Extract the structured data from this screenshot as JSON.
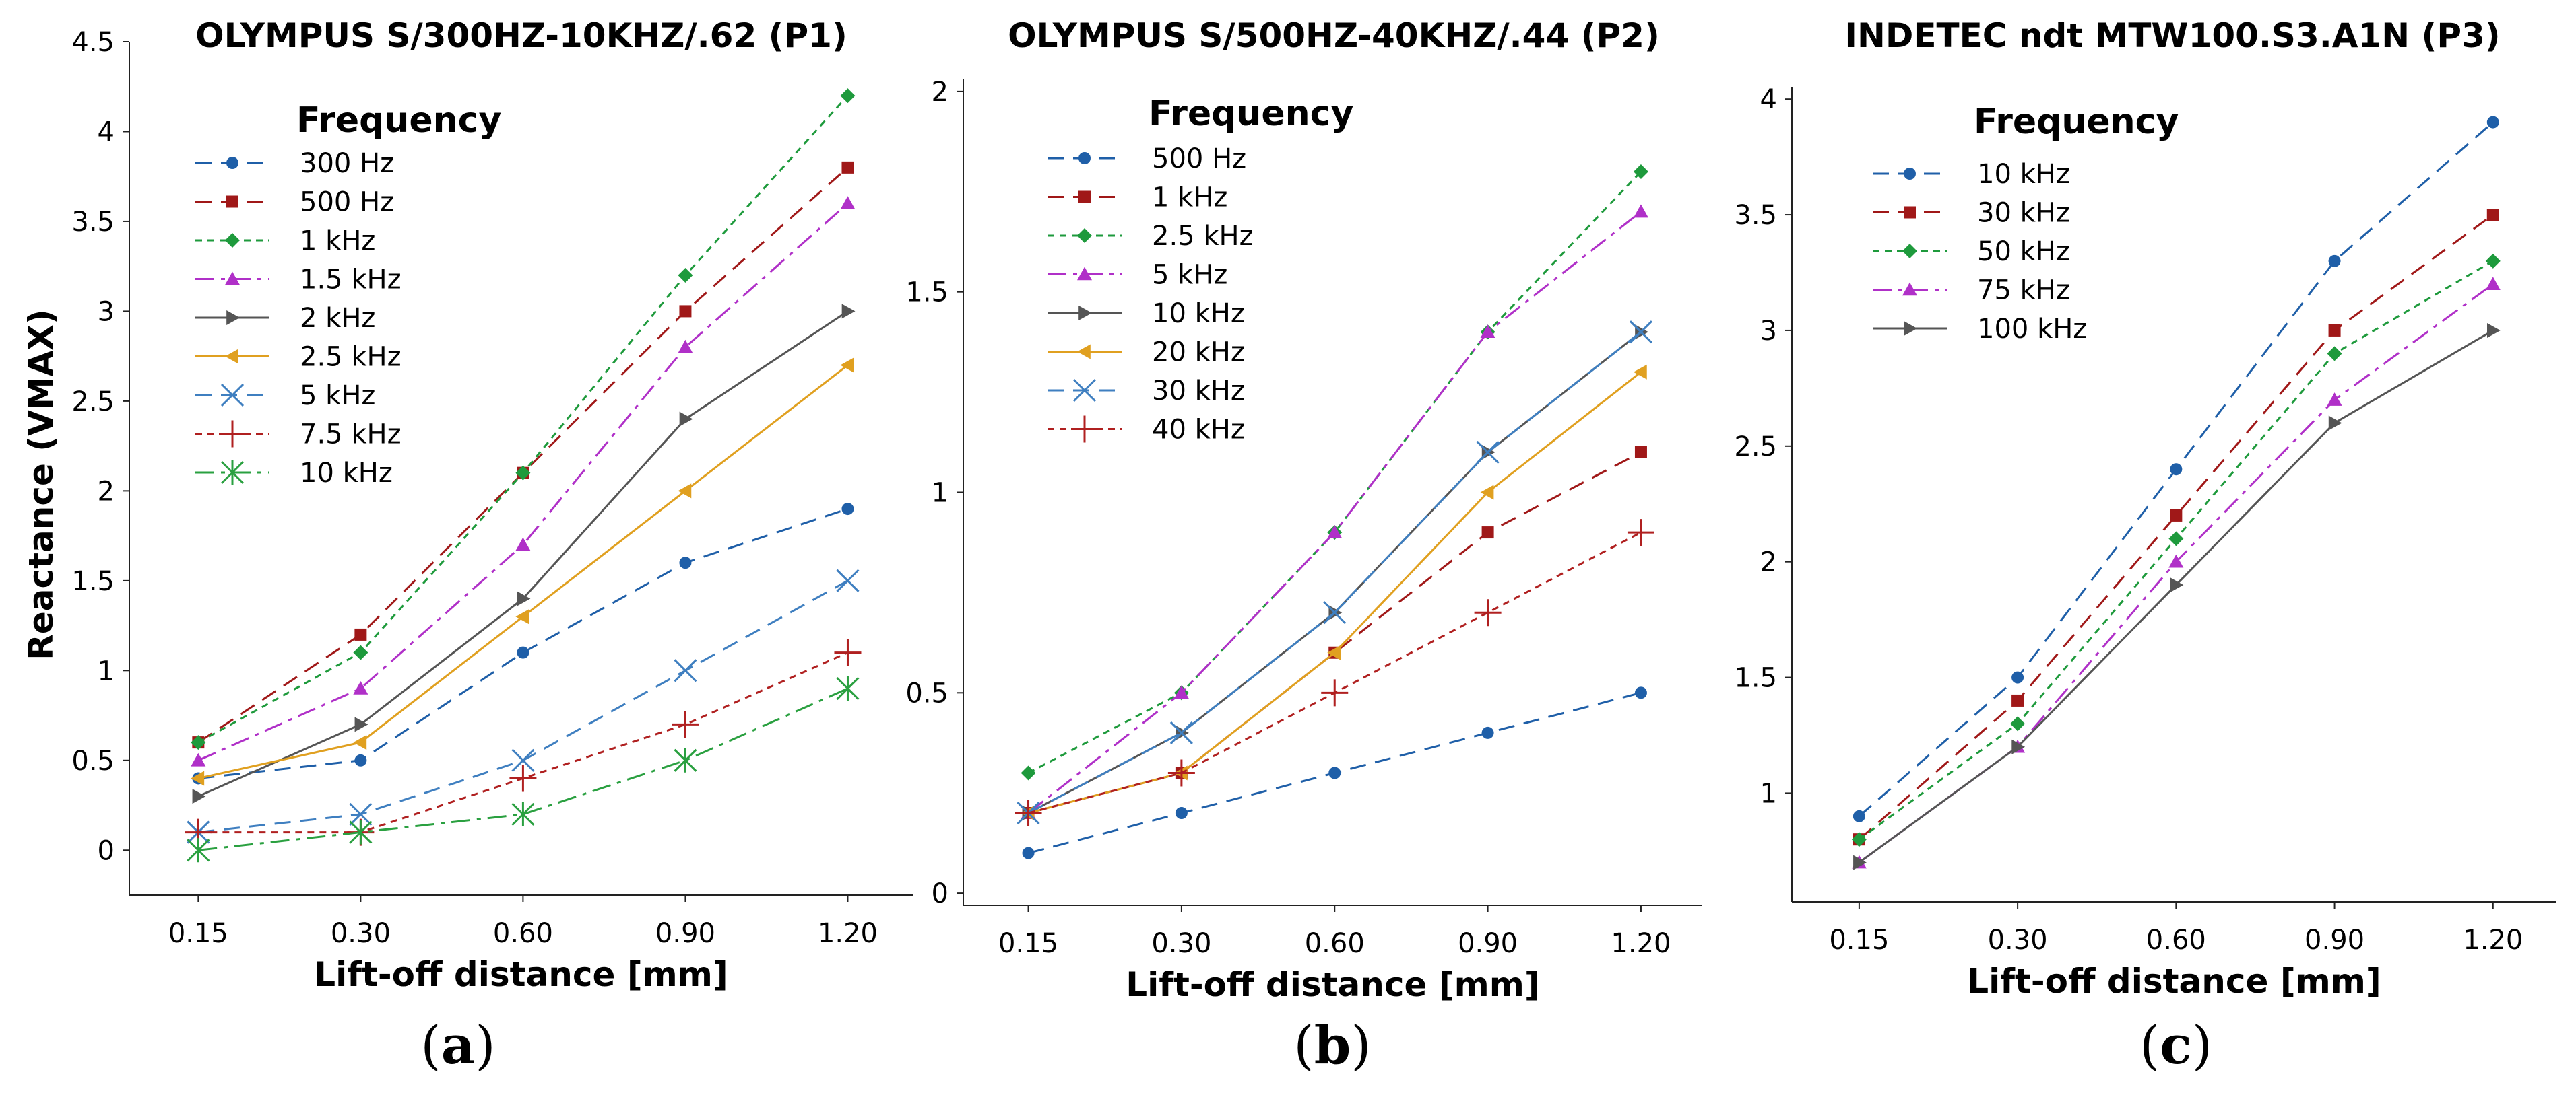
{
  "ylabel": "Reactance (VMAX)",
  "colors": {
    "blue": "#1f5fa8",
    "red": "#a01818",
    "green": "#1e9a3c",
    "purple": "#b030c8",
    "gray": "#555555",
    "orange": "#e0a020",
    "lightblue": "#3f7fc0",
    "darkred": "#b02020",
    "darkgreen": "#2aa040"
  },
  "chart_data": [
    {
      "type": "line",
      "title": "OLYMPUS S/300HZ-10KHZ/.62 (P1)",
      "sublabel_open": "(",
      "sublabel": "a",
      "sublabel_close": ")",
      "xlabel": "Lift-off distance [mm]",
      "ylabel": "Reactance (VMAX)",
      "categories": [
        "0.15",
        "0.30",
        "0.60",
        "0.90",
        "1.20"
      ],
      "ylim": [
        -0.25,
        4.5
      ],
      "yticks": [
        "0",
        "0.5",
        "1",
        "1.5",
        "2",
        "2.5",
        "3",
        "3.5",
        "4",
        "4.5"
      ],
      "ytick_values": [
        0,
        0.5,
        1,
        1.5,
        2,
        2.5,
        3,
        3.5,
        4,
        4.5
      ],
      "legend_title": "Frequency",
      "legend_placement": "top-left",
      "grid": false,
      "series": [
        {
          "name": "300 Hz",
          "values": [
            0.4,
            0.5,
            1.1,
            1.6,
            1.9
          ],
          "color": "#1f5fa8",
          "dash": "24,14",
          "marker": "circle"
        },
        {
          "name": "500 Hz",
          "values": [
            0.6,
            1.2,
            2.1,
            3.0,
            3.8
          ],
          "color": "#a01818",
          "dash": "24,14",
          "marker": "square"
        },
        {
          "name": "1 kHz",
          "values": [
            0.6,
            1.1,
            2.1,
            3.2,
            4.2
          ],
          "color": "#1e9a3c",
          "dash": "10,8",
          "marker": "diamond"
        },
        {
          "name": "1.5 kHz",
          "values": [
            0.5,
            0.9,
            1.7,
            2.8,
            3.6
          ],
          "color": "#b030c8",
          "dash": "28,10,6,10",
          "marker": "triangle-up"
        },
        {
          "name": "2 kHz",
          "values": [
            0.3,
            0.7,
            1.4,
            2.4,
            3.0
          ],
          "color": "#555555",
          "dash": "",
          "marker": "triangle-right"
        },
        {
          "name": "2.5 kHz",
          "values": [
            0.4,
            0.6,
            1.3,
            2.0,
            2.7
          ],
          "color": "#e0a020",
          "dash": "",
          "marker": "triangle-left"
        },
        {
          "name": "5 kHz",
          "values": [
            0.1,
            0.2,
            0.5,
            1.0,
            1.5
          ],
          "color": "#3f7fc0",
          "dash": "24,14",
          "marker": "x"
        },
        {
          "name": "7.5 kHz",
          "values": [
            0.1,
            0.1,
            0.4,
            0.7,
            1.1
          ],
          "color": "#b02020",
          "dash": "10,8",
          "marker": "plus"
        },
        {
          "name": "10 kHz",
          "values": [
            0.0,
            0.1,
            0.2,
            0.5,
            0.9
          ],
          "color": "#2aa040",
          "dash": "28,10,6,10",
          "marker": "star"
        }
      ]
    },
    {
      "type": "line",
      "title": "OLYMPUS S/500HZ-40KHZ/.44 (P2)",
      "sublabel_open": "(",
      "sublabel": "b",
      "sublabel_close": ")",
      "xlabel": "Lift-off distance [mm]",
      "ylabel": "",
      "categories": [
        "0.15",
        "0.30",
        "0.60",
        "0.90",
        "1.20"
      ],
      "ylim": [
        -0.03,
        2.03
      ],
      "yticks": [
        "0",
        "0.5",
        "1",
        "1.5",
        "2"
      ],
      "ytick_values": [
        0,
        0.5,
        1,
        1.5,
        2
      ],
      "legend_title": "Frequency",
      "legend_placement": "top-left",
      "grid": false,
      "series": [
        {
          "name": "500 Hz",
          "values": [
            0.1,
            0.2,
            0.3,
            0.4,
            0.5
          ],
          "color": "#1f5fa8",
          "dash": "24,14",
          "marker": "circle"
        },
        {
          "name": "1 kHz",
          "values": [
            0.2,
            0.3,
            0.6,
            0.9,
            1.1
          ],
          "color": "#a01818",
          "dash": "24,14",
          "marker": "square"
        },
        {
          "name": "2.5 kHz",
          "values": [
            0.3,
            0.5,
            0.9,
            1.4,
            1.8
          ],
          "color": "#1e9a3c",
          "dash": "10,8",
          "marker": "diamond"
        },
        {
          "name": "5 kHz",
          "values": [
            0.2,
            0.5,
            0.9,
            1.4,
            1.7
          ],
          "color": "#b030c8",
          "dash": "28,10,6,10",
          "marker": "triangle-up"
        },
        {
          "name": "10 kHz",
          "values": [
            0.2,
            0.4,
            0.7,
            1.1,
            1.4
          ],
          "color": "#555555",
          "dash": "",
          "marker": "triangle-right"
        },
        {
          "name": "20 kHz",
          "values": [
            0.2,
            0.3,
            0.6,
            1.0,
            1.3
          ],
          "color": "#e0a020",
          "dash": "",
          "marker": "triangle-left"
        },
        {
          "name": "30 kHz",
          "values": [
            0.2,
            0.4,
            0.7,
            1.1,
            1.4
          ],
          "color": "#3f7fc0",
          "dash": "24,14",
          "marker": "x"
        },
        {
          "name": "40 kHz",
          "values": [
            0.2,
            0.3,
            0.5,
            0.7,
            0.9
          ],
          "color": "#b02020",
          "dash": "10,8",
          "marker": "plus"
        }
      ]
    },
    {
      "type": "line",
      "title": "INDETEC ndt MTW100.S3.A1N (P3)",
      "sublabel_open": "(",
      "sublabel": "c",
      "sublabel_close": ")",
      "xlabel": "Lift-off distance [mm]",
      "ylabel": "",
      "categories": [
        "0.15",
        "0.30",
        "0.60",
        "0.90",
        "1.20"
      ],
      "ylim": [
        0.53,
        4.05
      ],
      "yticks": [
        "1",
        "1.5",
        "2",
        "2.5",
        "3",
        "3.5",
        "4"
      ],
      "ytick_values": [
        1,
        1.5,
        2,
        2.5,
        3,
        3.5,
        4
      ],
      "legend_title": "Frequency",
      "legend_placement": "top-left",
      "grid": false,
      "series": [
        {
          "name": "10 kHz",
          "values": [
            0.9,
            1.5,
            2.4,
            3.3,
            3.9
          ],
          "color": "#1f5fa8",
          "dash": "24,14",
          "marker": "circle"
        },
        {
          "name": "30 kHz",
          "values": [
            0.8,
            1.4,
            2.2,
            3.0,
            3.5
          ],
          "color": "#a01818",
          "dash": "24,14",
          "marker": "square"
        },
        {
          "name": "50 kHz",
          "values": [
            0.8,
            1.3,
            2.1,
            2.9,
            3.3
          ],
          "color": "#1e9a3c",
          "dash": "10,8",
          "marker": "diamond"
        },
        {
          "name": "75 kHz",
          "values": [
            0.7,
            1.2,
            2.0,
            2.7,
            3.2
          ],
          "color": "#b030c8",
          "dash": "28,10,6,10",
          "marker": "triangle-up"
        },
        {
          "name": "100 kHz",
          "values": [
            0.7,
            1.2,
            1.9,
            2.6,
            3.0
          ],
          "color": "#555555",
          "dash": "",
          "marker": "triangle-right"
        }
      ]
    }
  ]
}
